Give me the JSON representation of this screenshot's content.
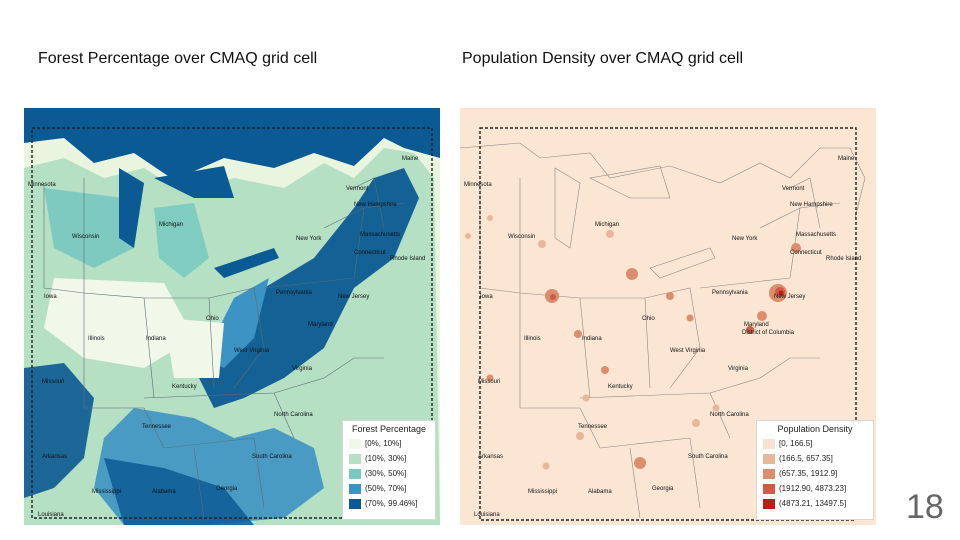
{
  "slide": {
    "page_number": "18"
  },
  "left_panel": {
    "title": "Forest Percentage over CMAQ grid cell",
    "legend": {
      "title": "Forest Percentage",
      "items": [
        {
          "label": "[0%, 10%]",
          "color": "#f1f8ea"
        },
        {
          "label": "(10%, 30%]",
          "color": "#b5e0c3"
        },
        {
          "label": "(30%, 50%]",
          "color": "#78c8c0"
        },
        {
          "label": "(50%, 70%]",
          "color": "#3d94c4"
        },
        {
          "label": "(70%, 99.46%]",
          "color": "#0c5a94"
        }
      ]
    },
    "state_labels": [
      "Minnesota",
      "Wisconsin",
      "Michigan",
      "Iowa",
      "Illinois",
      "Indiana",
      "Ohio",
      "Kentucky",
      "Tennessee",
      "Mississippi",
      "Alabama",
      "Georgia",
      "South Carolina",
      "North Carolina",
      "Virginia",
      "West Virginia",
      "Pennsylvania",
      "New York",
      "New Jersey",
      "Maryland",
      "Vermont",
      "New Hampshire",
      "Massachusetts",
      "Connecticut",
      "Rhode Island",
      "Missouri",
      "Arkansas",
      "Louisiana",
      "Maine"
    ]
  },
  "right_panel": {
    "title": "Population Density over CMAQ grid cell",
    "legend": {
      "title": "Population Density",
      "items": [
        {
          "label": "[0, 166.5]",
          "color": "#f6e2d2"
        },
        {
          "label": "(166.5, 657.35]",
          "color": "#e8b79a"
        },
        {
          "label": "(657.35, 1912.9]",
          "color": "#dc8d6e"
        },
        {
          "label": "(1912.90, 4873.23]",
          "color": "#cf5a45"
        },
        {
          "label": "(4873.21, 13497.5]",
          "color": "#b81e14"
        }
      ]
    },
    "state_labels": [
      "Minnesota",
      "Wisconsin",
      "Michigan",
      "Iowa",
      "Illinois",
      "Indiana",
      "Ohio",
      "Kentucky",
      "Tennessee",
      "Mississippi",
      "Alabama",
      "Georgia",
      "South Carolina",
      "North Carolina",
      "Virginia",
      "West Virginia",
      "Pennsylvania",
      "New York",
      "New Jersey",
      "Maryland",
      "District of Columbia",
      "Vermont",
      "New Hampshire",
      "Massachusetts",
      "Connecticut",
      "Rhode Island",
      "Missouri",
      "Arkansas",
      "Louisiana",
      "Maine"
    ]
  },
  "colors": {
    "water_left": "#0c5a94",
    "land_base_left": "#b5e0c3",
    "canvas_right": "#fbe6d4",
    "land_right": "#f8e4d4"
  }
}
